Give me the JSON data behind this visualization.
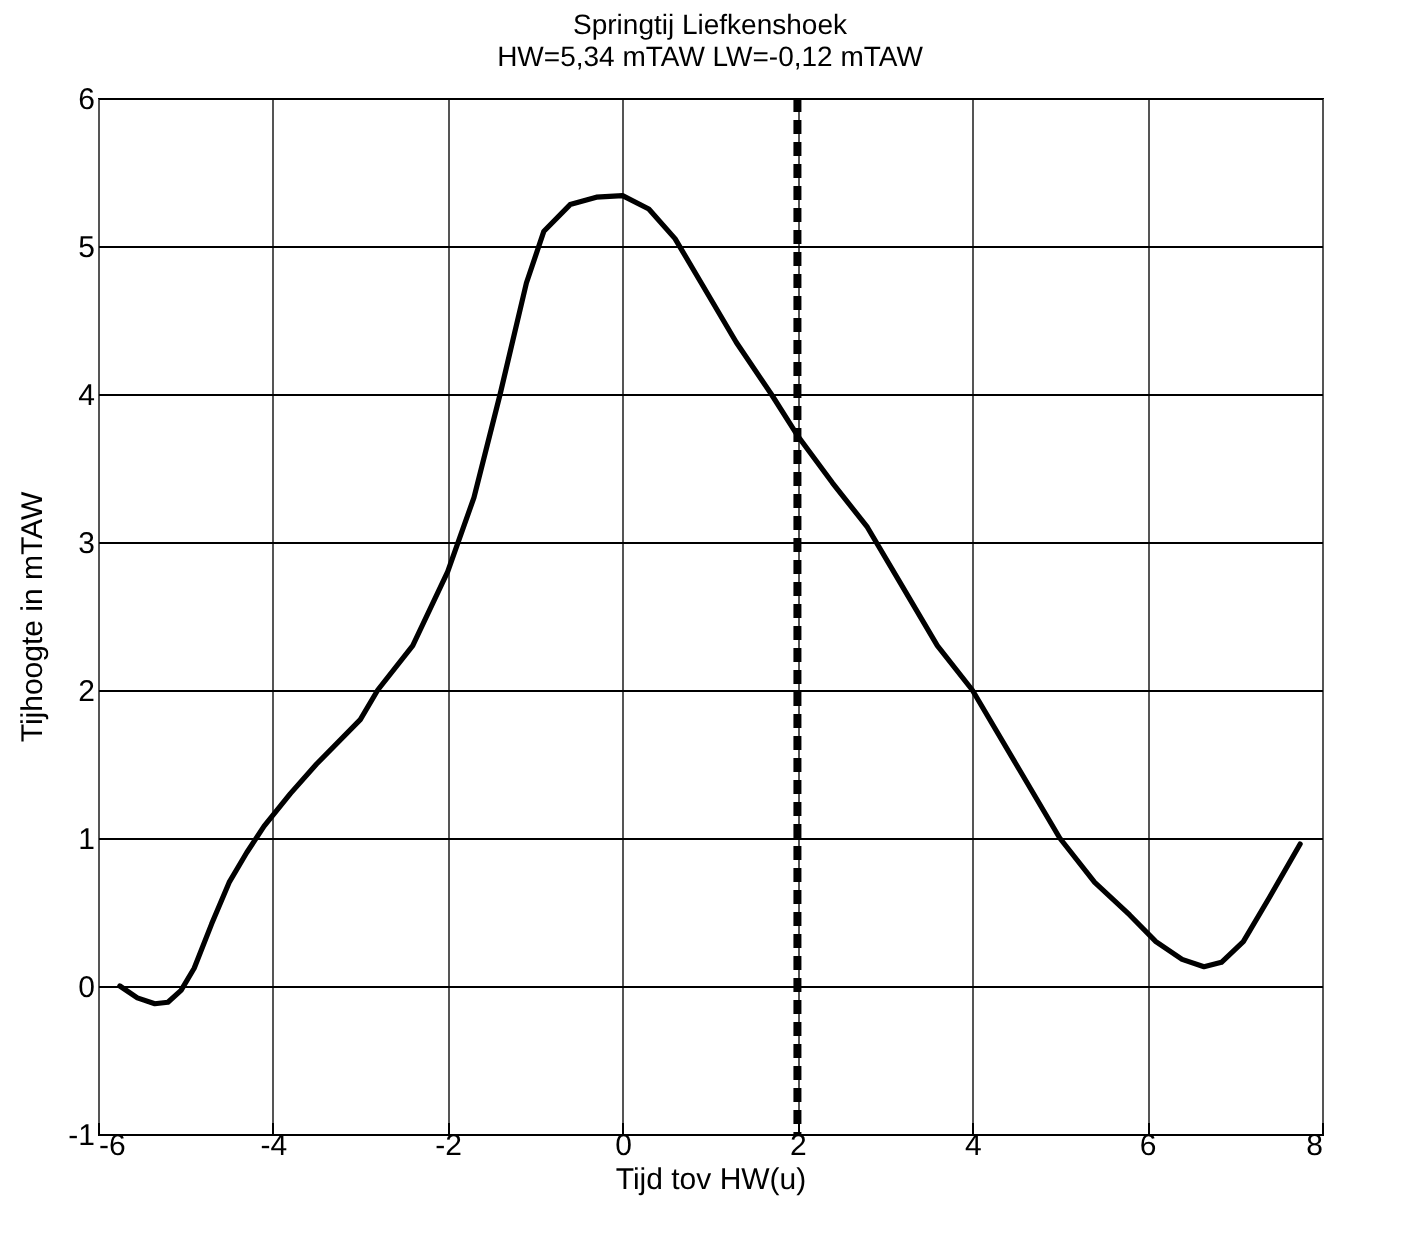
{
  "chart_data": {
    "type": "line",
    "title": "Springtij Liefkenshoek",
    "subtitle": "HW=5,34 mTAW  LW=-0,12 mTAW",
    "xlabel": "Tijd tov HW(u)",
    "ylabel": "Tijhoogte in mTAW",
    "x": [
      -5.75,
      -5.55,
      -5.35,
      -5.2,
      -5.05,
      -4.9,
      -4.7,
      -4.5,
      -4.3,
      -4.1,
      -3.8,
      -3.5,
      -3.0,
      -2.8,
      -2.4,
      -2.0,
      -1.7,
      -1.4,
      -1.1,
      -0.9,
      -0.6,
      -0.3,
      0,
      0.3,
      0.6,
      0.9,
      1.3,
      1.7,
      2.0,
      2.4,
      2.8,
      3.2,
      3.6,
      4.0,
      4.5,
      5.0,
      5.4,
      5.8,
      6.1,
      6.4,
      6.65,
      6.85,
      7.1,
      7.4,
      7.75
    ],
    "series": [
      {
        "color": "#000000",
        "values": [
          0.0,
          -0.08,
          -0.12,
          -0.11,
          -0.03,
          0.12,
          0.42,
          0.7,
          0.9,
          1.08,
          1.3,
          1.5,
          1.8,
          2.0,
          2.3,
          2.8,
          3.3,
          4.0,
          4.75,
          5.1,
          5.28,
          5.33,
          5.34,
          5.25,
          5.05,
          4.75,
          4.35,
          4.0,
          3.72,
          3.4,
          3.1,
          2.7,
          2.3,
          2.0,
          1.5,
          1.0,
          0.7,
          0.48,
          0.3,
          0.18,
          0.13,
          0.16,
          0.3,
          0.6,
          0.96
        ]
      }
    ],
    "xlim": [
      -6,
      8
    ],
    "xticks": [
      -6,
      -4,
      -2,
      0,
      2,
      4,
      6,
      8
    ],
    "ylim": [
      -1,
      6
    ],
    "yticks": [
      -1,
      0,
      1,
      2,
      3,
      4,
      5,
      6
    ],
    "grid": true,
    "marker": "none",
    "line_style": "solid",
    "ref_lines": [
      {
        "axis": "x",
        "value": 2,
        "color": "#000000",
        "line_style": "dashed"
      }
    ]
  }
}
